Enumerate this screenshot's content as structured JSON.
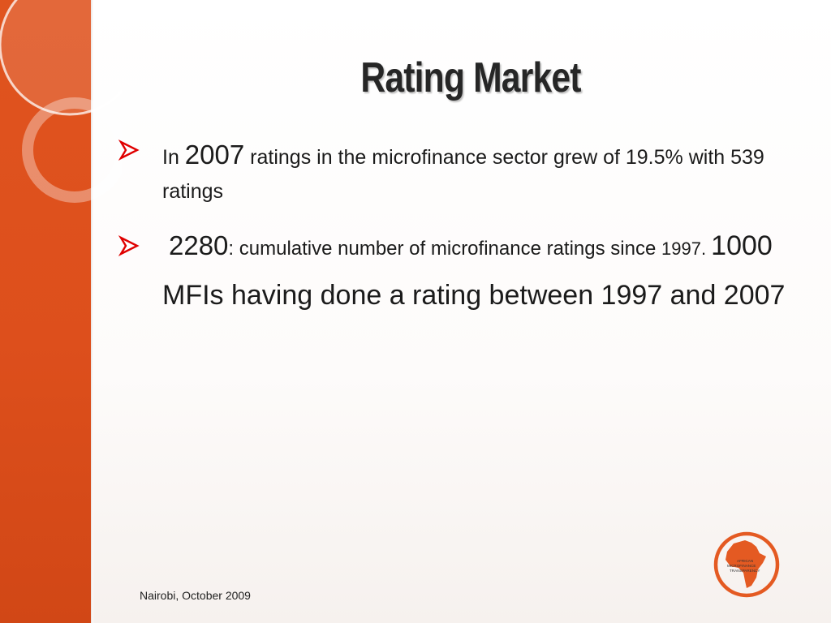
{
  "slide": {
    "title": "Rating Market",
    "bullet1": {
      "prefix": "In ",
      "year": "2007",
      "rest": " ratings in the microfinance sector grew of 19.5% with 539 ratings"
    },
    "bullet2": {
      "number": "2280",
      "rest": ": cumulative number of microfinance ratings since ",
      "year": "1997. ",
      "tail": "1000 MFIs having done a rating between 1997 and 2007"
    },
    "footer": "Nairobi, October 2009"
  },
  "logo": {
    "lines": [
      "AFRICAN",
      "MICROFINANCE",
      "TRANSPARENCY"
    ],
    "icon": "africa-map-icon"
  },
  "colors": {
    "band": "#dd4f1c",
    "bullet_arrow": "#e00000",
    "logo": "#e45a22"
  }
}
